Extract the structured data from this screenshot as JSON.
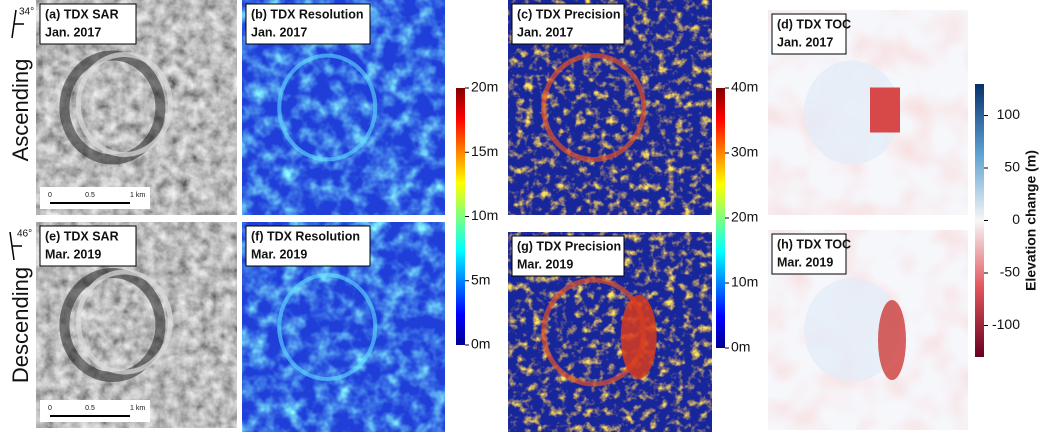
{
  "rows": [
    {
      "label": "Ascending",
      "angle": "34°"
    },
    {
      "label": "Descending",
      "angle": "46°"
    }
  ],
  "panels": [
    {
      "title": "(a) TDX SAR",
      "date": "Jan. 2017"
    },
    {
      "title": "(b) TDX Resolution",
      "date": "Jan. 2017"
    },
    {
      "title": "(c) TDX Precision",
      "date": "Jan. 2017"
    },
    {
      "title": "(d) TDX TOC",
      "date": "Jan. 2017"
    },
    {
      "title": "(e) TDX SAR",
      "date": "Mar. 2019"
    },
    {
      "title": "(f) TDX Resolution",
      "date": "Mar. 2019"
    },
    {
      "title": "(g) TDX Precision",
      "date": "Mar. 2019"
    },
    {
      "title": "(h) TDX TOC",
      "date": "Mar. 2019"
    }
  ],
  "scalebars": [
    {
      "ticks": [
        "0",
        "0.5",
        "1 km"
      ]
    },
    {
      "ticks": [
        "0",
        "0.5",
        "1 km"
      ]
    }
  ],
  "colorbars": [
    {
      "range": [
        0,
        20
      ],
      "ticks": [
        {
          "value": 0,
          "label": "0m"
        },
        {
          "value": 5,
          "label": "5m"
        },
        {
          "value": 10,
          "label": "10m"
        },
        {
          "value": 15,
          "label": "15m"
        },
        {
          "value": 20,
          "label": "20m"
        }
      ]
    },
    {
      "range": [
        0,
        40
      ],
      "ticks": [
        {
          "value": 0,
          "label": "0m"
        },
        {
          "value": 10,
          "label": "10m"
        },
        {
          "value": 20,
          "label": "20m"
        },
        {
          "value": 30,
          "label": "30m"
        },
        {
          "value": 40,
          "label": "40m"
        }
      ]
    },
    {
      "title": "Elevation change (m)",
      "range": [
        -130,
        130
      ],
      "ticks": [
        100,
        50,
        0,
        -50,
        -100
      ]
    }
  ]
}
